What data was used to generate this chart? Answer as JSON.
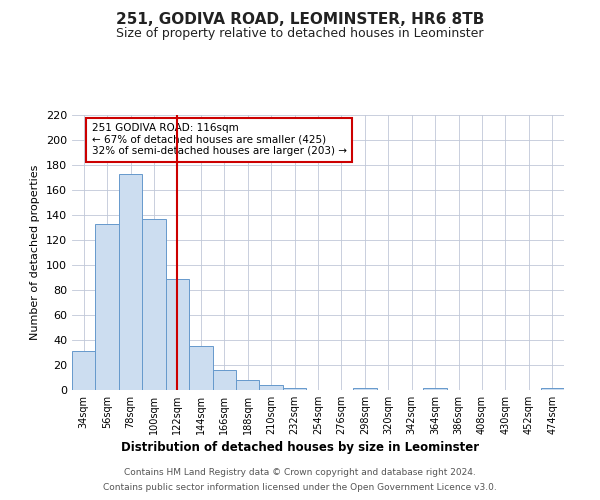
{
  "title": "251, GODIVA ROAD, LEOMINSTER, HR6 8TB",
  "subtitle": "Size of property relative to detached houses in Leominster",
  "xlabel": "Distribution of detached houses by size in Leominster",
  "ylabel": "Number of detached properties",
  "bin_labels": [
    "34sqm",
    "56sqm",
    "78sqm",
    "100sqm",
    "122sqm",
    "144sqm",
    "166sqm",
    "188sqm",
    "210sqm",
    "232sqm",
    "254sqm",
    "276sqm",
    "298sqm",
    "320sqm",
    "342sqm",
    "364sqm",
    "386sqm",
    "408sqm",
    "430sqm",
    "452sqm",
    "474sqm"
  ],
  "bar_values": [
    31,
    133,
    173,
    137,
    89,
    35,
    16,
    8,
    4,
    2,
    0,
    0,
    2,
    0,
    0,
    2,
    0,
    0,
    0,
    0,
    2
  ],
  "bar_color": "#ccddf0",
  "bar_edge_color": "#6699cc",
  "ylim": [
    0,
    220
  ],
  "yticks": [
    0,
    20,
    40,
    60,
    80,
    100,
    120,
    140,
    160,
    180,
    200,
    220
  ],
  "vline_x": 4,
  "vline_color": "#cc0000",
  "annotation_title": "251 GODIVA ROAD: 116sqm",
  "annotation_line1": "← 67% of detached houses are smaller (425)",
  "annotation_line2": "32% of semi-detached houses are larger (203) →",
  "annotation_box_color": "#ffffff",
  "annotation_box_edge": "#cc0000",
  "footer1": "Contains HM Land Registry data © Crown copyright and database right 2024.",
  "footer2": "Contains public sector information licensed under the Open Government Licence v3.0.",
  "background_color": "#ffffff",
  "grid_color": "#c0c8d8"
}
